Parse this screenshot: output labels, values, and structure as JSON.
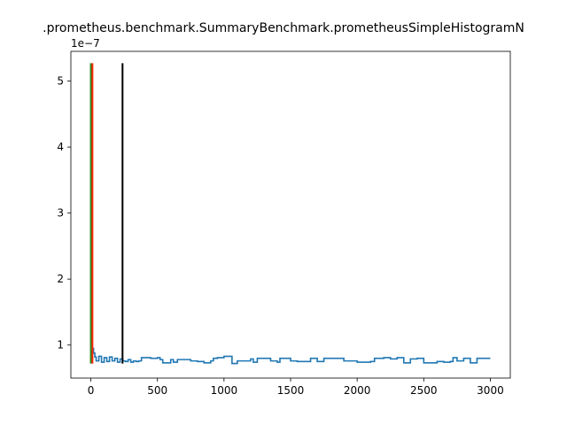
{
  "chart_data": {
    "type": "line",
    "title": ".prometheus.benchmark.SummaryBenchmark.prometheusSimpleHistogramN",
    "xlabel": "",
    "ylabel": "",
    "y_scale_label": "1e−7",
    "xlim": [
      -150,
      3150
    ],
    "ylim": [
      5e-08,
      5.45e-07
    ],
    "x_ticks": [
      0,
      500,
      1000,
      1500,
      2000,
      2500,
      3000
    ],
    "x_tick_labels": [
      "0",
      "500",
      "1000",
      "1500",
      "2000",
      "2500",
      "3000"
    ],
    "y_ticks": [
      1e-07,
      2e-07,
      3e-07,
      4e-07,
      5e-07
    ],
    "y_tick_labels": [
      "1",
      "2",
      "3",
      "4",
      "5"
    ],
    "grid": false,
    "series": [
      {
        "color": "#1f77b4",
        "x": [
          0,
          2,
          5,
          10,
          20,
          30,
          40,
          60,
          80,
          100,
          120,
          140,
          160,
          180,
          200,
          220,
          240,
          260,
          280,
          300,
          320,
          340,
          360,
          380,
          400,
          450,
          500,
          520,
          540,
          600,
          620,
          650,
          700,
          750,
          800,
          850,
          900,
          920,
          950,
          1000,
          1050,
          1060,
          1100,
          1150,
          1200,
          1220,
          1250,
          1300,
          1350,
          1400,
          1420,
          1450,
          1500,
          1550,
          1600,
          1650,
          1700,
          1750,
          1800,
          1850,
          1900,
          1950,
          2000,
          2050,
          2100,
          2130,
          2200,
          2250,
          2300,
          2350,
          2400,
          2450,
          2500,
          2550,
          2600,
          2650,
          2700,
          2720,
          2750,
          2800,
          2850,
          2900,
          2950,
          3000
        ],
        "y": [
          5.2e-07,
          2.5e-07,
          1.2e-07,
          9.5e-08,
          8.8e-08,
          8.2e-08,
          7.6e-08,
          8.3e-08,
          7.4e-08,
          8.1e-08,
          7.5e-08,
          8.2e-08,
          7.6e-08,
          8e-08,
          7.4e-08,
          7.9e-08,
          7.6e-08,
          7.5e-08,
          7.8e-08,
          7.4e-08,
          7.6e-08,
          7.5e-08,
          7.6e-08,
          8.1e-08,
          8.1e-08,
          8e-08,
          8.1e-08,
          7.8e-08,
          7.3e-08,
          7.8e-08,
          7.4e-08,
          7.8e-08,
          7.8e-08,
          7.6e-08,
          7.5e-08,
          7.3e-08,
          7.6e-08,
          8e-08,
          8.1e-08,
          8.3e-08,
          8.3e-08,
          7.2e-08,
          7.6e-08,
          7.6e-08,
          7.9e-08,
          7.4e-08,
          8e-08,
          8e-08,
          7.6e-08,
          7.4e-08,
          8e-08,
          8e-08,
          7.6e-08,
          7.5e-08,
          7.5e-08,
          8e-08,
          7.5e-08,
          8e-08,
          8e-08,
          8e-08,
          7.6e-08,
          7.6e-08,
          7.4e-08,
          7.4e-08,
          7.5e-08,
          8e-08,
          8.1e-08,
          7.9e-08,
          8.1e-08,
          7.3e-08,
          7.9e-08,
          8e-08,
          7.3e-08,
          7.3e-08,
          7.5e-08,
          7.4e-08,
          7.5e-08,
          8.1e-08,
          7.6e-08,
          8e-08,
          7.3e-08,
          8e-08,
          8e-08,
          8e-08
        ]
      }
    ],
    "vlines": [
      {
        "x": 0,
        "ymin": 7.2e-08,
        "ymax": 5.27e-07,
        "color": "#228b22"
      },
      {
        "x": 12,
        "ymin": 7.2e-08,
        "ymax": 5.27e-07,
        "color": "#ff2200"
      },
      {
        "x": 238,
        "ymin": 7.2e-08,
        "ymax": 5.27e-07,
        "color": "#000000"
      }
    ]
  }
}
